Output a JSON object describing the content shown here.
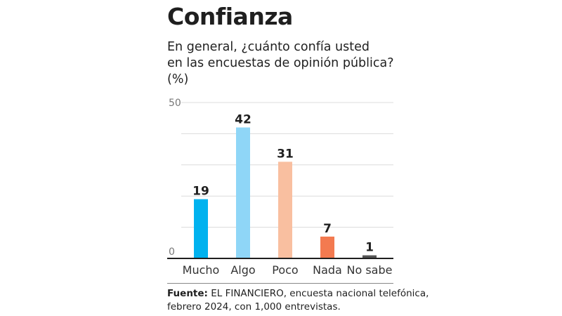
{
  "header": {
    "title": "Confianza",
    "subtitle_lines": [
      "En general, ¿cuánto confía usted",
      "en las encuestas de opinión pública?",
      "(%)"
    ]
  },
  "chart_data": {
    "type": "bar",
    "title": "Confianza",
    "subtitle": "En general, ¿cuánto confía usted en las encuestas de opinión pública? (%)",
    "categories": [
      "Mucho",
      "Algo",
      "Poco",
      "Nada",
      "No sabe"
    ],
    "values": [
      19,
      42,
      31,
      7,
      1
    ],
    "colors": [
      "#00b2ef",
      "#8fd6f7",
      "#f9bfa0",
      "#f37a50",
      "#555555"
    ],
    "xlabel": "",
    "ylabel": "%",
    "ylim": [
      0,
      50
    ],
    "yticks_labeled": [
      0,
      50
    ],
    "gridlines": [
      10,
      20,
      30,
      40,
      50
    ],
    "grid": true,
    "legend": "none"
  },
  "source": {
    "label": "Fuente:",
    "line1": " EL FINANCIERO, encuesta nacional telefónica,",
    "line2": "febrero 2024, con 1,000 entrevistas."
  }
}
